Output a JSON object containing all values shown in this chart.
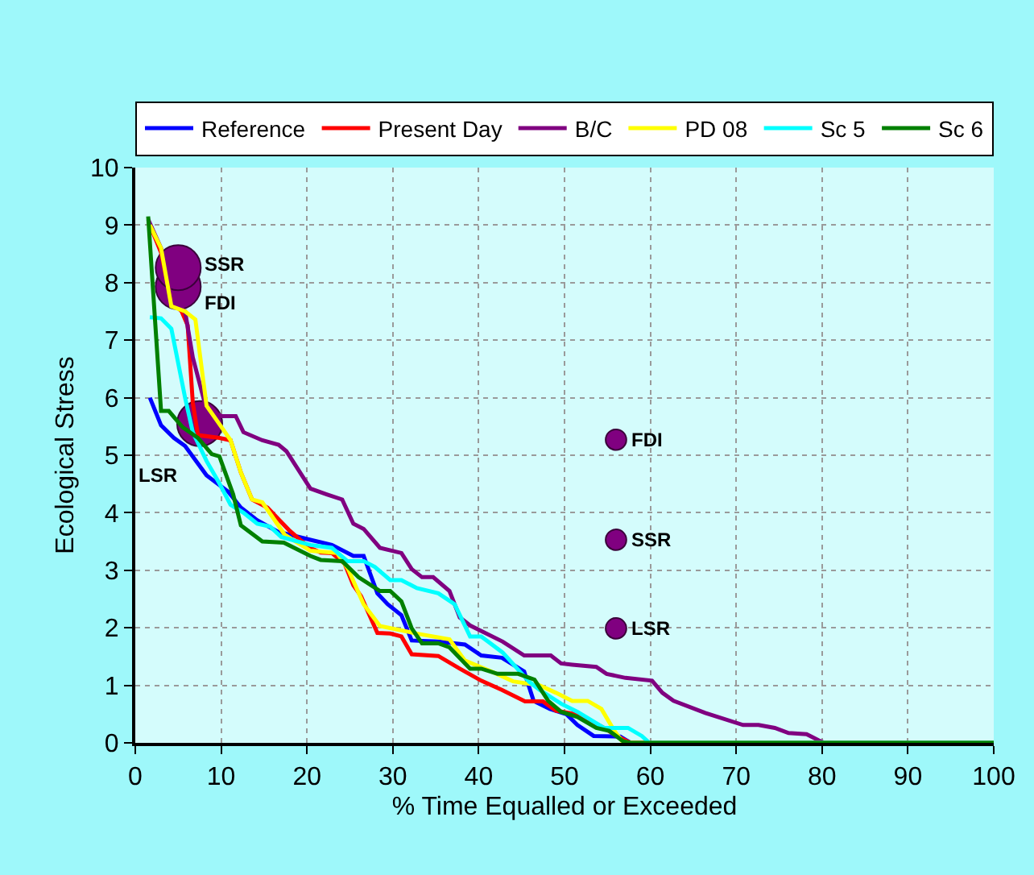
{
  "chart_data": {
    "type": "line",
    "xlabel": "% Time Equalled or Exceeded",
    "ylabel": "Ecological Stress",
    "xlim": [
      0,
      100
    ],
    "xticks": [
      0,
      10,
      20,
      30,
      40,
      50,
      60,
      70,
      80,
      90,
      100
    ],
    "ylim": [
      0,
      10
    ],
    "yticks": [
      0,
      1,
      2,
      3,
      4,
      5,
      6,
      7,
      8,
      9,
      10
    ],
    "grid": true,
    "legend": "top",
    "marker": "none",
    "line_style": "solid",
    "series": [
      {
        "name": "Reference",
        "color": "#0000ff",
        "x": [
          1.7,
          3.0,
          4.5,
          5.8,
          8.3,
          10.8,
          12.3,
          14.2,
          16.6,
          20.4,
          22.9,
          25.4,
          26.6,
          28.2,
          29.4,
          31.0,
          32.2,
          35.3,
          38.4,
          40.3,
          42.7,
          45.3,
          46.4,
          48.3,
          50.2,
          51.5,
          53.4,
          56.5,
          57.7,
          100
        ],
        "values": [
          6.0,
          5.52,
          5.3,
          5.16,
          4.65,
          4.37,
          4.09,
          3.87,
          3.67,
          3.53,
          3.44,
          3.25,
          3.25,
          2.6,
          2.41,
          2.22,
          1.78,
          1.76,
          1.71,
          1.52,
          1.48,
          1.24,
          0.73,
          0.59,
          0.5,
          0.31,
          0.12,
          0.11,
          0,
          0
        ]
      },
      {
        "name": "Present Day",
        "color": "#ff0000",
        "x": [
          1.7,
          3.0,
          4.2,
          5.4,
          6.1,
          6.7,
          7.3,
          9.8,
          11.1,
          12.3,
          13.6,
          15.4,
          16.6,
          17.9,
          19.2,
          20.4,
          21.6,
          22.9,
          24.4,
          25.4,
          26.3,
          28.2,
          29.7,
          31.0,
          32.2,
          35.3,
          37.8,
          40.3,
          42.7,
          45.4,
          47.5,
          49.0,
          51.7,
          54.6,
          56.2,
          57.7,
          100
        ],
        "values": [
          9.0,
          8.52,
          7.68,
          7.5,
          7.26,
          5.91,
          5.35,
          5.3,
          5.26,
          4.7,
          4.23,
          4.09,
          3.9,
          3.7,
          3.53,
          3.39,
          3.31,
          3.3,
          3.11,
          2.74,
          2.55,
          1.91,
          1.9,
          1.85,
          1.54,
          1.51,
          1.29,
          1.08,
          0.92,
          0.72,
          0.72,
          0.56,
          0.49,
          0.26,
          0.11,
          0,
          0
        ]
      },
      {
        "name": "B/C",
        "color": "#800080",
        "x": [
          1.5,
          3.0,
          4.2,
          5.8,
          6.7,
          8.3,
          10.1,
          11.7,
          12.6,
          14.8,
          16.7,
          17.6,
          20.4,
          22.3,
          24.1,
          25.4,
          26.6,
          28.5,
          31.0,
          32.2,
          33.4,
          34.7,
          36.6,
          37.8,
          39.0,
          42.8,
          45.3,
          48.4,
          49.6,
          50.9,
          53.7,
          54.9,
          57.1,
          60.2,
          61.4,
          62.7,
          66.4,
          70.8,
          72.6,
          74.5,
          76.1,
          78.2,
          79.8,
          80.3,
          100
        ],
        "values": [
          9.1,
          8.6,
          7.68,
          7.5,
          6.7,
          5.79,
          5.68,
          5.68,
          5.4,
          5.26,
          5.18,
          5.07,
          4.42,
          4.32,
          4.23,
          3.81,
          3.72,
          3.39,
          3.3,
          3.02,
          2.88,
          2.88,
          2.64,
          2.18,
          2.04,
          1.76,
          1.52,
          1.52,
          1.38,
          1.36,
          1.32,
          1.2,
          1.13,
          1.08,
          0.87,
          0.73,
          0.52,
          0.31,
          0.31,
          0.26,
          0.17,
          0.15,
          0.03,
          0,
          0
        ]
      },
      {
        "name": "PD 08",
        "color": "#ffff00",
        "x": [
          1.7,
          3.0,
          4.2,
          5.8,
          7.0,
          8.3,
          9.8,
          11.1,
          12.3,
          13.6,
          14.8,
          17.4,
          20.4,
          23.5,
          24.8,
          26.6,
          28.5,
          32.8,
          36.6,
          38.4,
          41.5,
          44.0,
          47.1,
          49.0,
          50.9,
          52.7,
          54.3,
          55.8,
          56.7,
          57.5,
          100
        ],
        "values": [
          9.0,
          8.6,
          7.59,
          7.5,
          7.36,
          5.86,
          5.54,
          5.26,
          4.7,
          4.23,
          4.18,
          3.62,
          3.34,
          3.3,
          3.02,
          2.41,
          2.03,
          1.9,
          1.8,
          1.43,
          1.24,
          1.07,
          1.0,
          0.87,
          0.73,
          0.73,
          0.59,
          0.21,
          0.03,
          0,
          0
        ]
      },
      {
        "name": "Sc 5",
        "color": "#00ffff",
        "x": [
          1.7,
          3.0,
          4.2,
          5.8,
          6.7,
          8.3,
          9.8,
          11.1,
          12.6,
          14.2,
          15.7,
          17.0,
          20.4,
          22.9,
          24.7,
          26.6,
          27.9,
          29.7,
          31.0,
          32.8,
          35.3,
          37.2,
          39.0,
          40.3,
          42.8,
          45.9,
          47.1,
          49.6,
          51.5,
          54.6,
          57.4,
          59.0,
          59.9,
          100
        ],
        "values": [
          7.4,
          7.38,
          7.2,
          6.0,
          5.4,
          4.9,
          4.51,
          4.14,
          4.0,
          3.81,
          3.76,
          3.58,
          3.44,
          3.39,
          3.16,
          3.16,
          3.06,
          2.83,
          2.83,
          2.69,
          2.6,
          2.41,
          1.85,
          1.85,
          1.57,
          1.06,
          0.92,
          0.68,
          0.54,
          0.26,
          0.26,
          0.12,
          0,
          0
        ]
      },
      {
        "name": "Sc 6",
        "color": "#008000",
        "x": [
          1.5,
          3.0,
          3.9,
          5.5,
          7.3,
          8.9,
          9.8,
          11.4,
          12.3,
          14.8,
          17.3,
          20.4,
          21.6,
          24.1,
          26.0,
          28.5,
          29.7,
          31.0,
          32.2,
          33.4,
          35.3,
          36.6,
          39.0,
          40.3,
          42.2,
          44.6,
          46.5,
          48.1,
          49.6,
          51.5,
          53.7,
          55.2,
          56.8,
          57.7,
          100
        ],
        "values": [
          9.15,
          5.77,
          5.77,
          5.49,
          5.3,
          5.02,
          4.98,
          4.32,
          3.78,
          3.5,
          3.48,
          3.25,
          3.18,
          3.16,
          2.88,
          2.64,
          2.64,
          2.46,
          1.99,
          1.73,
          1.73,
          1.66,
          1.29,
          1.29,
          1.2,
          1.2,
          1.1,
          0.73,
          0.54,
          0.45,
          0.26,
          0.21,
          0.03,
          0,
          0
        ]
      },
      {
        "type": "bubble",
        "marker": "circle",
        "color": "#800080",
        "x": [
          5.0,
          5.0,
          7.5,
          56,
          56,
          56
        ],
        "values": [
          7.93,
          8.26,
          5.55,
          5.27,
          3.53,
          1.99
        ],
        "sizes": [
          1,
          1,
          1,
          0.21,
          0.21,
          0.21
        ]
      }
    ],
    "annotations": [
      {
        "text": "SSR",
        "x": 5.0,
        "y": 8.26
      },
      {
        "text": "FDI",
        "x": 5.0,
        "y": 7.93
      },
      {
        "text": "LSR",
        "x": 7.5,
        "y": 5.55
      },
      {
        "text": "FDI",
        "x": 56,
        "y": 5.27
      },
      {
        "text": "SSR",
        "x": 56,
        "y": 3.53
      },
      {
        "text": "LSR",
        "x": 56,
        "y": 1.99
      }
    ]
  }
}
